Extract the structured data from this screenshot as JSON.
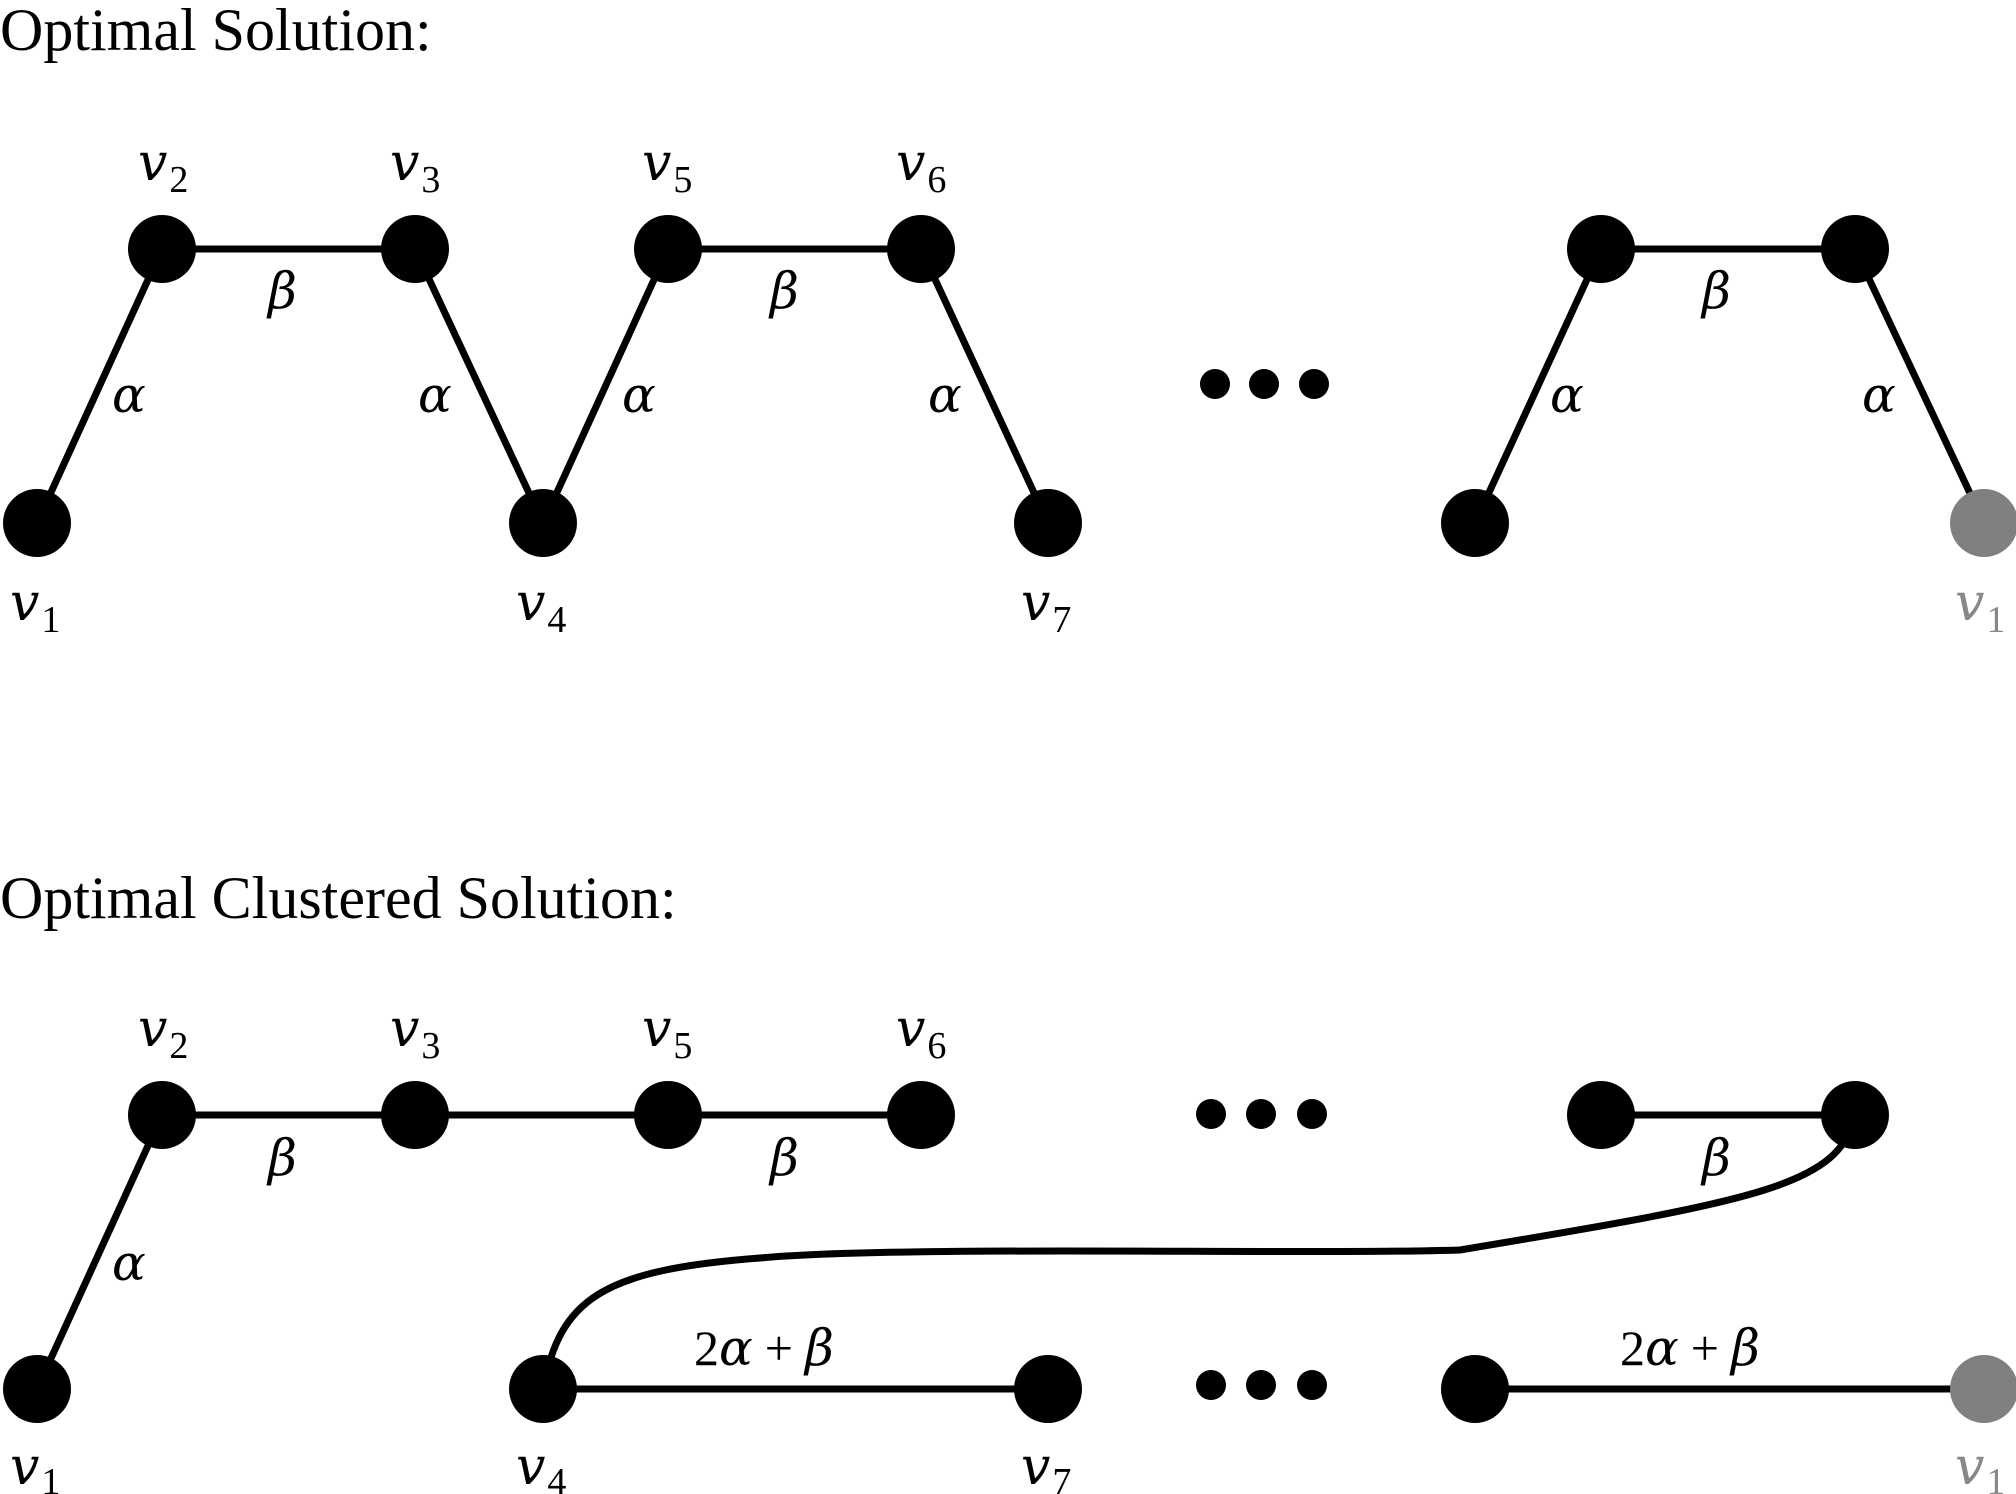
{
  "top": {
    "title": "Optimal Solution:",
    "node_labels": {
      "v1": {
        "var": "v",
        "sub": "1"
      },
      "v2": {
        "var": "v",
        "sub": "2"
      },
      "v3": {
        "var": "v",
        "sub": "3"
      },
      "v4": {
        "var": "v",
        "sub": "4"
      },
      "v5": {
        "var": "v",
        "sub": "5"
      },
      "v6": {
        "var": "v",
        "sub": "6"
      },
      "v7": {
        "var": "v",
        "sub": "7"
      },
      "v1_end": {
        "var": "v",
        "sub": "1"
      }
    },
    "edge_labels": {
      "v1_v2": "α",
      "v2_v3": "β",
      "v3_v4": "α",
      "v4_v5": "α",
      "v5_v6": "β",
      "v6_v7": "α",
      "r1_r2": "α",
      "r2_r3": "β",
      "r3_v1": "α"
    }
  },
  "bottom": {
    "title": "Optimal Clustered Solution:",
    "node_labels": {
      "v1": {
        "var": "v",
        "sub": "1"
      },
      "v2": {
        "var": "v",
        "sub": "2"
      },
      "v3": {
        "var": "v",
        "sub": "3"
      },
      "v5": {
        "var": "v",
        "sub": "5"
      },
      "v6": {
        "var": "v",
        "sub": "6"
      },
      "v4": {
        "var": "v",
        "sub": "4"
      },
      "v7": {
        "var": "v",
        "sub": "7"
      },
      "v1_end": {
        "var": "v",
        "sub": "1"
      }
    },
    "edge_labels": {
      "v1_v2": "α",
      "v2_v3": "β",
      "v5_v6": "β",
      "r1_r2": "β",
      "v4_v7": {
        "num": "2",
        "alpha": "α",
        "plus": "+",
        "beta": "β"
      },
      "r_end": {
        "num": "2",
        "alpha": "α",
        "plus": "+",
        "beta": "β"
      }
    }
  },
  "colors": {
    "node": "#000000",
    "node_return": "#808080",
    "label_return": "#888888"
  },
  "icons": {
    "ellipsis": "dots"
  }
}
